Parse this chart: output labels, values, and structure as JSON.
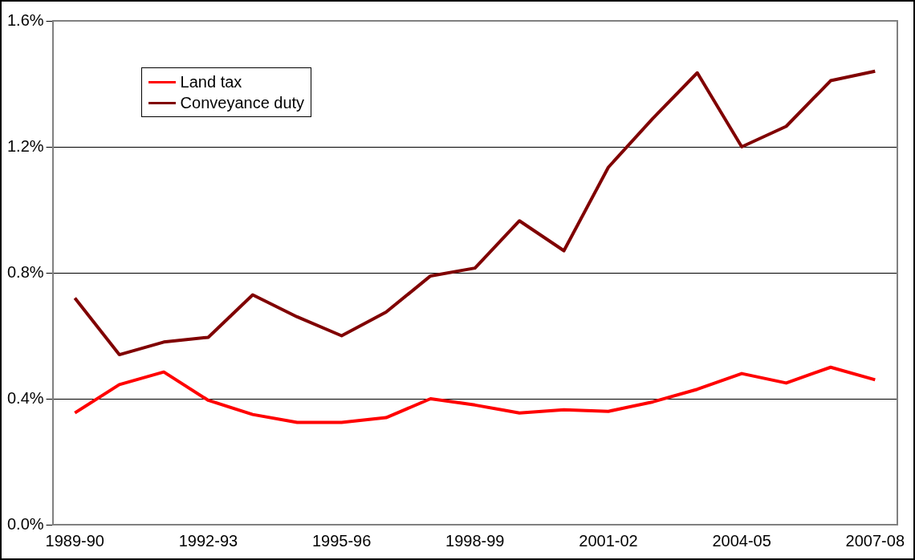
{
  "chart_data": {
    "type": "line",
    "categories": [
      "1989-90",
      null,
      null,
      "1992-93",
      null,
      null,
      "1995-96",
      null,
      null,
      "1998-99",
      null,
      null,
      "2001-02",
      null,
      null,
      "2004-05",
      null,
      null,
      "2007-08"
    ],
    "series": [
      {
        "name": "Land tax",
        "color": "#ff0000",
        "values": [
          0.355,
          0.445,
          0.485,
          0.395,
          0.35,
          0.325,
          0.325,
          0.34,
          0.4,
          0.38,
          0.355,
          0.365,
          0.36,
          0.39,
          0.43,
          0.48,
          0.45,
          0.5,
          0.46
        ]
      },
      {
        "name": "Conveyance duty",
        "color": "#800000",
        "values": [
          0.72,
          0.54,
          0.58,
          0.595,
          0.73,
          0.66,
          0.6,
          0.675,
          0.79,
          0.815,
          0.965,
          0.87,
          1.135,
          1.29,
          1.435,
          1.2,
          1.265,
          1.41,
          1.44
        ]
      }
    ],
    "ylim": [
      0,
      1.6
    ],
    "yticks": [
      {
        "value": 0,
        "label": "0.0%"
      },
      {
        "value": 0.4,
        "label": "0.4%"
      },
      {
        "value": 0.8,
        "label": "0.8%"
      },
      {
        "value": 1.2,
        "label": "1.2%"
      },
      {
        "value": 1.6,
        "label": "1.6%"
      }
    ],
    "grid": "y",
    "legend": "top left",
    "marker": "none",
    "line_style": "solid"
  }
}
